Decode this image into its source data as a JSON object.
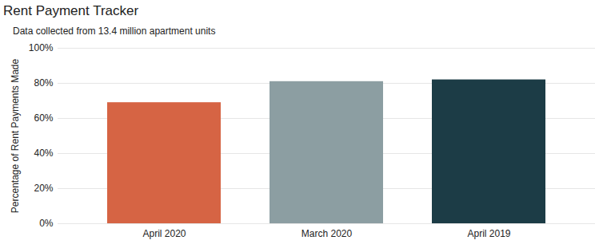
{
  "chart_data": {
    "type": "bar",
    "title": "Rent Payment Tracker",
    "subtitle": "Data collected from 13.4 million apartment units",
    "y_label": "Percentage of Rent Payments Made",
    "categories": [
      "April 2020",
      "March 2020",
      "April 2019"
    ],
    "values": [
      69,
      81,
      82
    ],
    "colors": [
      "#d66444",
      "#8c9ea2",
      "#1c3c46"
    ],
    "ylim": [
      0,
      100
    ],
    "yticks": [
      {
        "value": 0,
        "label": "0%"
      },
      {
        "value": 20,
        "label": "20%"
      },
      {
        "value": 40,
        "label": "40%"
      },
      {
        "value": 60,
        "label": "60%"
      },
      {
        "value": 80,
        "label": "80%"
      },
      {
        "value": 100,
        "label": "100%"
      }
    ],
    "grid": true
  }
}
